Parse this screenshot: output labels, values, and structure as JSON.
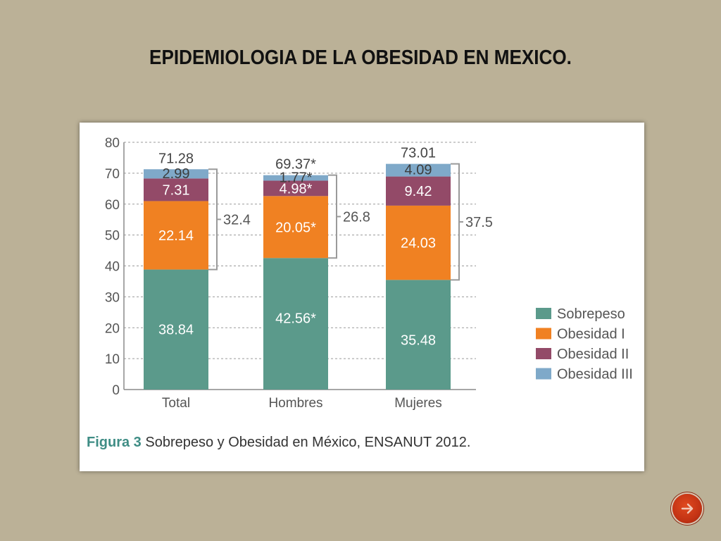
{
  "slide": {
    "title": "EPIDEMIOLOGIA DE LA OBESIDAD EN MEXICO."
  },
  "figure": {
    "caption_label": "Figura 3",
    "caption_text": " Sobrepeso y Obesidad en México, ENSANUT 2012."
  },
  "chart_data": {
    "type": "bar",
    "stacked": true,
    "categories": [
      "Total",
      "Hombres",
      "Mujeres"
    ],
    "series": [
      {
        "name": "Sobrepeso",
        "color": "#5b9a8b",
        "values": [
          38.84,
          42.56,
          35.48
        ],
        "labels": [
          "38.84",
          "42.56*",
          "35.48"
        ]
      },
      {
        "name": "Obesidad I",
        "color": "#f08122",
        "values": [
          22.14,
          20.05,
          24.03
        ],
        "labels": [
          "22.14",
          "20.05*",
          "24.03"
        ]
      },
      {
        "name": "Obesidad II",
        "color": "#934a68",
        "values": [
          7.31,
          4.98,
          9.42
        ],
        "labels": [
          "7.31",
          "4.98*",
          "9.42"
        ]
      },
      {
        "name": "Obesidad III",
        "color": "#7fa9c9",
        "values": [
          2.99,
          1.77,
          4.09
        ],
        "labels": [
          "2.99",
          "1.77*",
          "4.09"
        ]
      }
    ],
    "totals": [
      "71.28",
      "69.37*",
      "73.01"
    ],
    "obesity_totals": [
      "32.4",
      "26.8",
      "37.5"
    ],
    "ylim": [
      0,
      80
    ],
    "yticks": [
      0,
      10,
      20,
      30,
      40,
      50,
      60,
      70,
      80
    ],
    "grid": true,
    "legend_position": "right"
  }
}
